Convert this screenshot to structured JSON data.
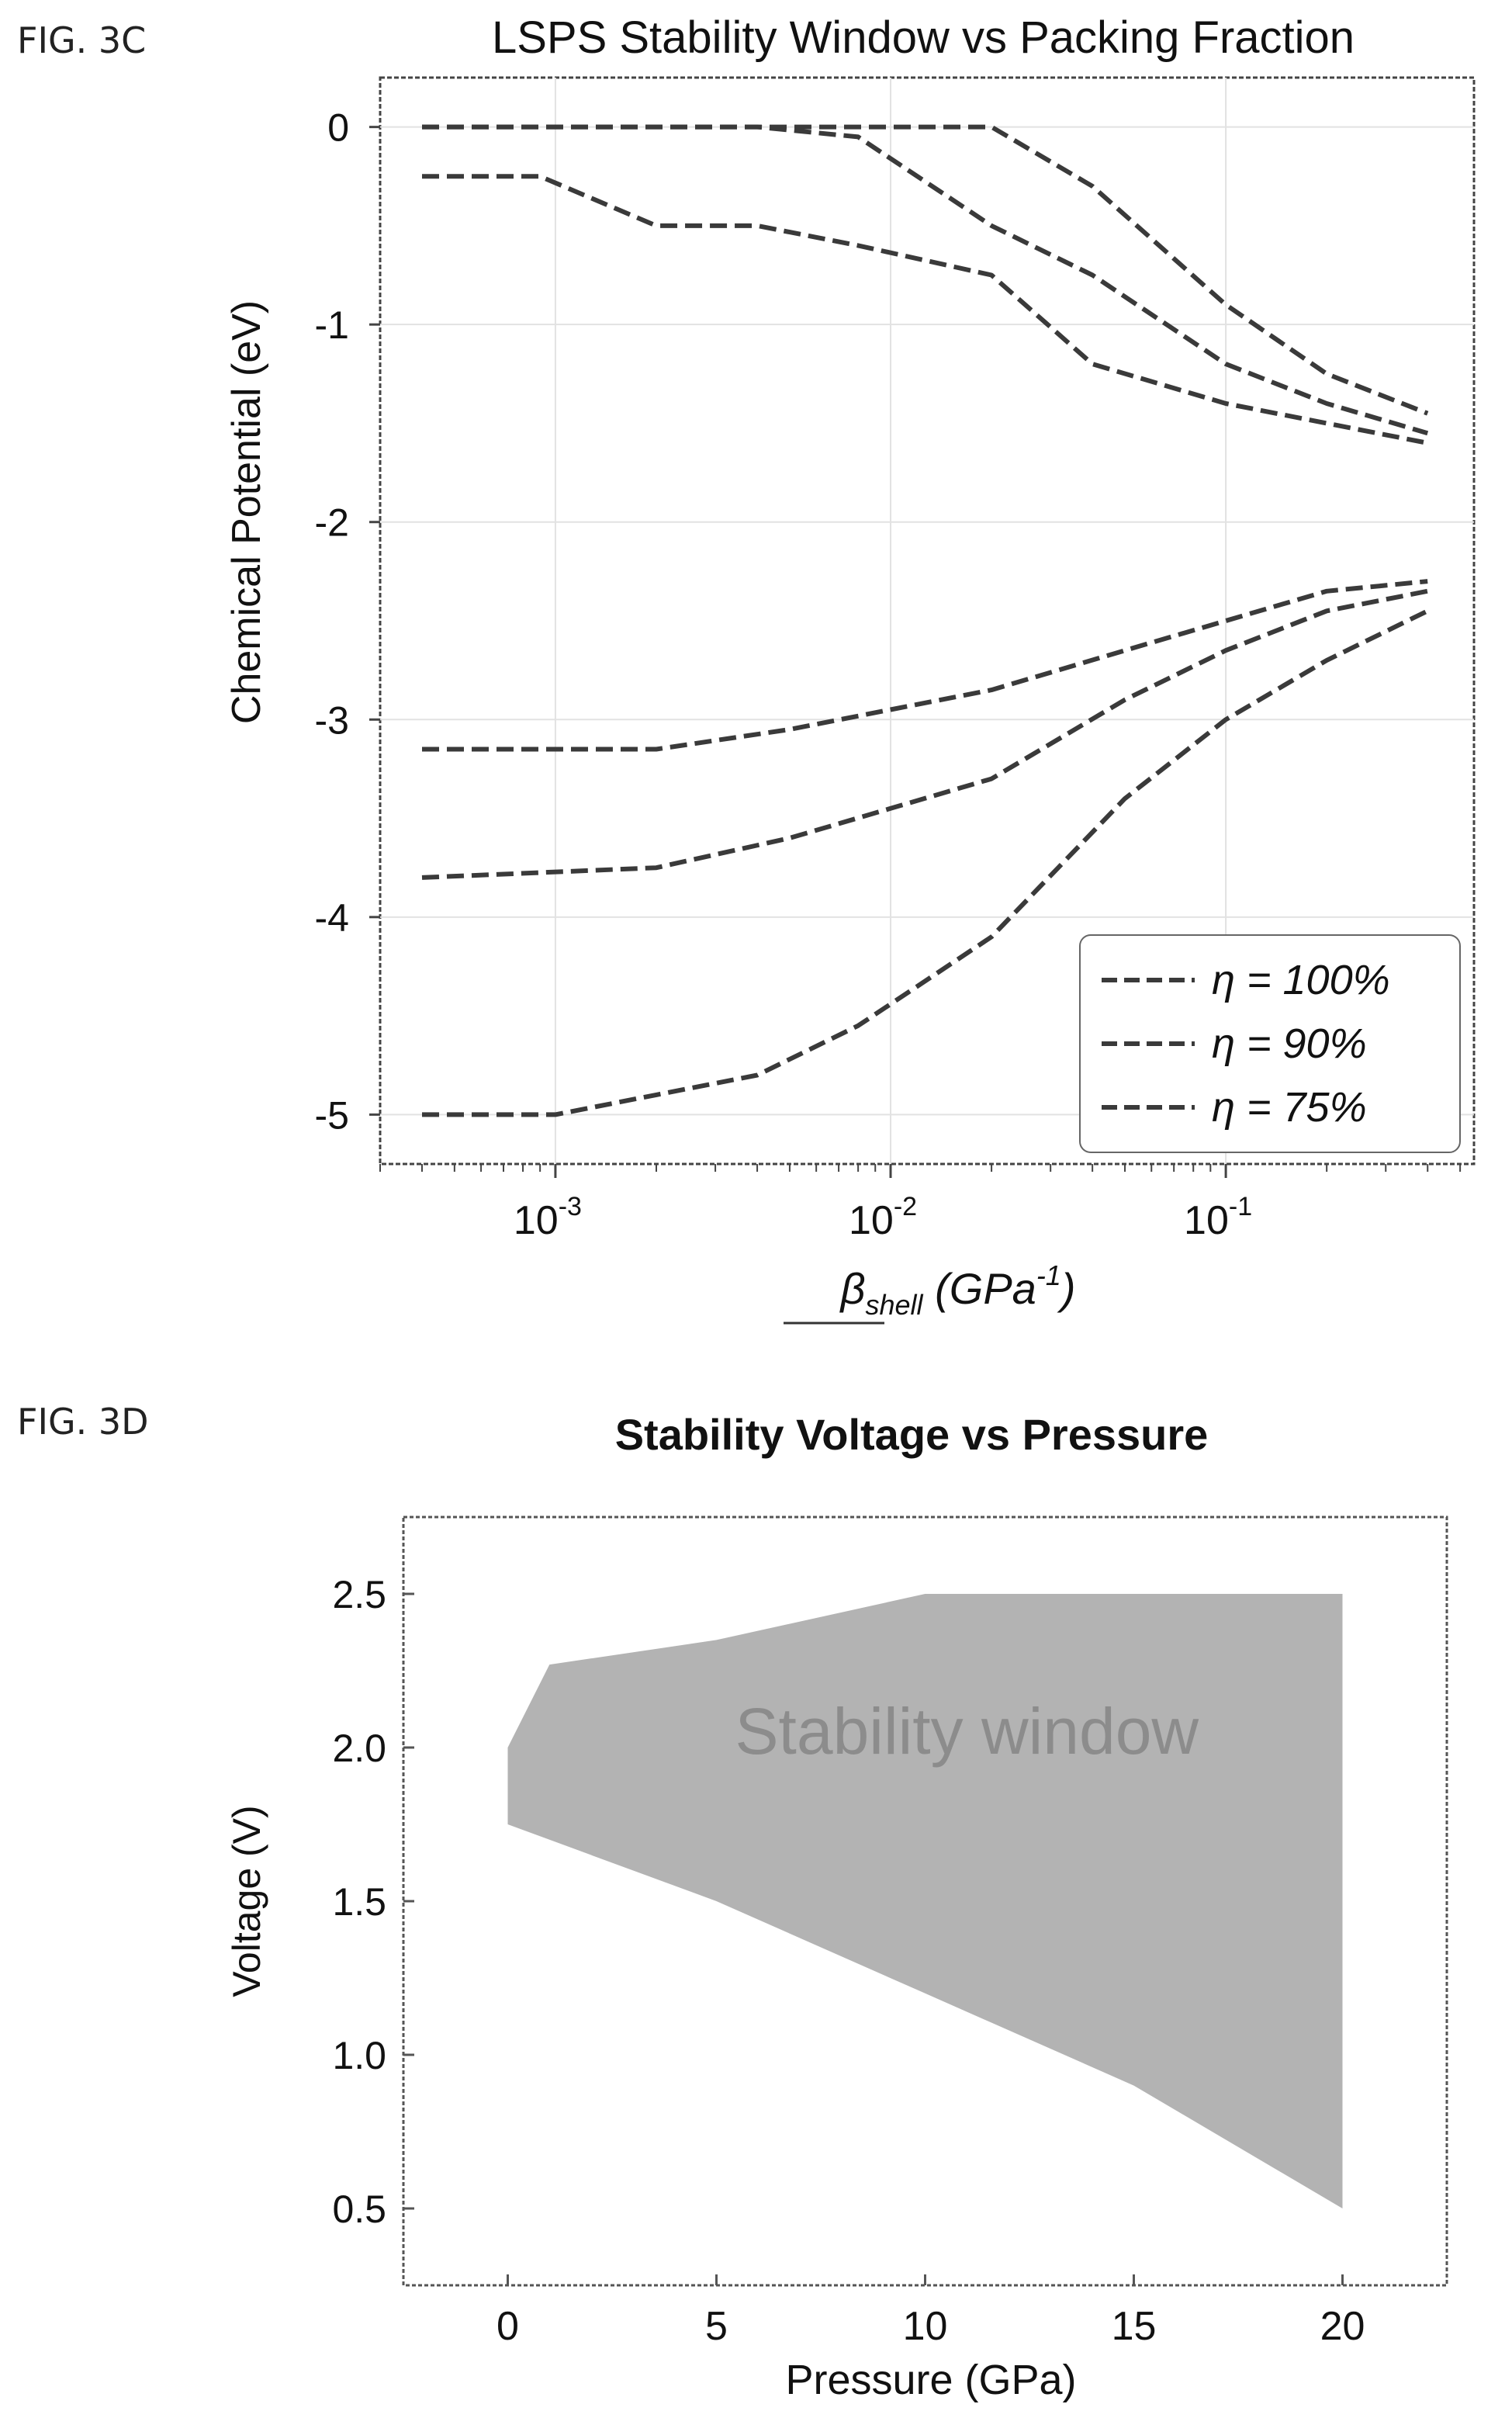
{
  "figures": [
    {
      "label": "FIG. 3C",
      "title": "LSPS Stability Window vs Packing Fraction",
      "ylabel": "Chemical Potential (eV)",
      "xlabel_base": "β",
      "xlabel_sub": "shell",
      "xlabel_unit_open": " (GPa",
      "xlabel_unit_exp": "-1",
      "xlabel_unit_close": ")"
    },
    {
      "label": "FIG. 3D",
      "title": "Stability Voltage vs Pressure",
      "xlabel": "Pressure (GPa)",
      "ylabel": "Voltage (V)",
      "annotation": "Stability window"
    }
  ],
  "chart_data": [
    {
      "type": "line",
      "title": "LSPS Stability Window vs Packing Fraction",
      "ylabel": "Chemical Potential (eV)",
      "xscale": "log",
      "xlim": [
        0.0003,
        0.55
      ],
      "ylim": [
        -5.25,
        0.25
      ],
      "yticks": [
        0,
        -1,
        -2,
        -3,
        -4,
        -5
      ],
      "ytick_labels": [
        "0",
        "-1",
        "-2",
        "-3",
        "-4",
        "-5"
      ],
      "xticks": [
        0.001,
        0.01,
        0.1
      ],
      "xtick_base": "10",
      "xtick_exps": [
        "-3",
        "-2",
        "-1"
      ],
      "line_style": "dashed",
      "legend": {
        "position": "lower-right",
        "entries": [
          "η = 100%",
          "η = 90%",
          "η = 75%"
        ]
      },
      "series": [
        {
          "name": "η = 100%",
          "branch": "upper",
          "x": [
            0.0004,
            0.001,
            0.005,
            0.01,
            0.02,
            0.04,
            0.1,
            0.2,
            0.4
          ],
          "y": [
            0,
            0,
            0,
            0,
            0,
            -0.3,
            -0.9,
            -1.25,
            -1.45
          ]
        },
        {
          "name": "η = 90%",
          "branch": "upper",
          "x": [
            0.0004,
            0.001,
            0.004,
            0.008,
            0.02,
            0.04,
            0.1,
            0.2,
            0.4
          ],
          "y": [
            0,
            0,
            0,
            -0.05,
            -0.5,
            -0.75,
            -1.2,
            -1.4,
            -1.55
          ]
        },
        {
          "name": "η = 75%",
          "branch": "upper",
          "x": [
            0.0004,
            0.0009,
            0.002,
            0.004,
            0.008,
            0.02,
            0.04,
            0.1,
            0.2,
            0.4
          ],
          "y": [
            -0.25,
            -0.25,
            -0.5,
            -0.5,
            -0.6,
            -0.75,
            -1.2,
            -1.4,
            -1.5,
            -1.6
          ]
        },
        {
          "name": "η = 100%",
          "branch": "lower",
          "x": [
            0.0004,
            0.002,
            0.005,
            0.01,
            0.02,
            0.05,
            0.1,
            0.2,
            0.4
          ],
          "y": [
            -3.15,
            -3.15,
            -3.05,
            -2.95,
            -2.85,
            -2.65,
            -2.5,
            -2.35,
            -2.3
          ]
        },
        {
          "name": "η = 90%",
          "branch": "lower",
          "x": [
            0.0004,
            0.002,
            0.005,
            0.01,
            0.02,
            0.05,
            0.1,
            0.2,
            0.4
          ],
          "y": [
            -3.8,
            -3.75,
            -3.6,
            -3.45,
            -3.3,
            -2.9,
            -2.65,
            -2.45,
            -2.35
          ]
        },
        {
          "name": "η = 75%",
          "branch": "lower",
          "x": [
            0.0004,
            0.001,
            0.002,
            0.004,
            0.008,
            0.02,
            0.05,
            0.1,
            0.2,
            0.4
          ],
          "y": [
            -5.0,
            -5.0,
            -4.9,
            -4.8,
            -4.55,
            -4.1,
            -3.4,
            -3.0,
            -2.7,
            -2.45
          ]
        }
      ]
    },
    {
      "type": "area",
      "title": "Stability Voltage vs Pressure",
      "xlabel": "Pressure (GPa)",
      "ylabel": "Voltage (V)",
      "xlim": [
        -2.5,
        22.5
      ],
      "ylim": [
        0.25,
        2.75
      ],
      "xticks": [
        0,
        5,
        10,
        15,
        20
      ],
      "xtick_labels": [
        "0",
        "5",
        "10",
        "15",
        "20"
      ],
      "yticks": [
        0.5,
        1.0,
        1.5,
        2.0,
        2.5
      ],
      "ytick_labels": [
        "0.5",
        "1.0",
        "1.5",
        "2.0",
        "2.5"
      ],
      "fill_color": "#b3b3b3",
      "x": [
        0,
        1,
        5,
        10,
        15,
        20
      ],
      "upper": [
        2.0,
        2.27,
        2.35,
        2.5,
        2.5,
        2.5
      ],
      "lower": [
        1.75,
        1.7,
        1.5,
        1.2,
        0.9,
        0.5
      ]
    }
  ]
}
